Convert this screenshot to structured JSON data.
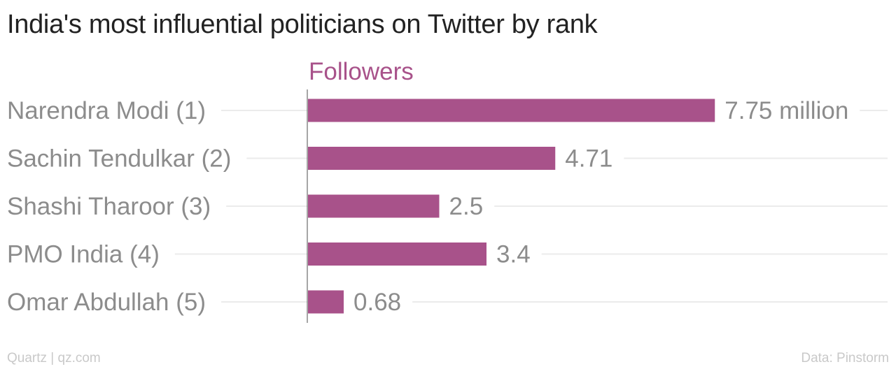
{
  "chart_data": {
    "type": "bar",
    "orientation": "horizontal",
    "title": "India's most influential politicians on Twitter by rank",
    "series": [
      {
        "name": "Followers",
        "values": [
          7.75,
          4.71,
          2.5,
          3.4,
          0.68
        ],
        "value_labels": [
          "7.75 million",
          "4.71",
          "2.5",
          "3.4",
          "0.68"
        ]
      }
    ],
    "categories": [
      "Narendra Modi (1)",
      "Sachin Tendulkar (2)",
      "Shashi Tharoor (3)",
      "PMO India (4)",
      "Omar Abdullah (5)"
    ],
    "xlim": [
      0,
      10
    ],
    "grid": true,
    "bar_color": "#a8528a"
  },
  "footer": {
    "credit": "Quartz | qz.com",
    "source": "Data: Pinstorm"
  }
}
